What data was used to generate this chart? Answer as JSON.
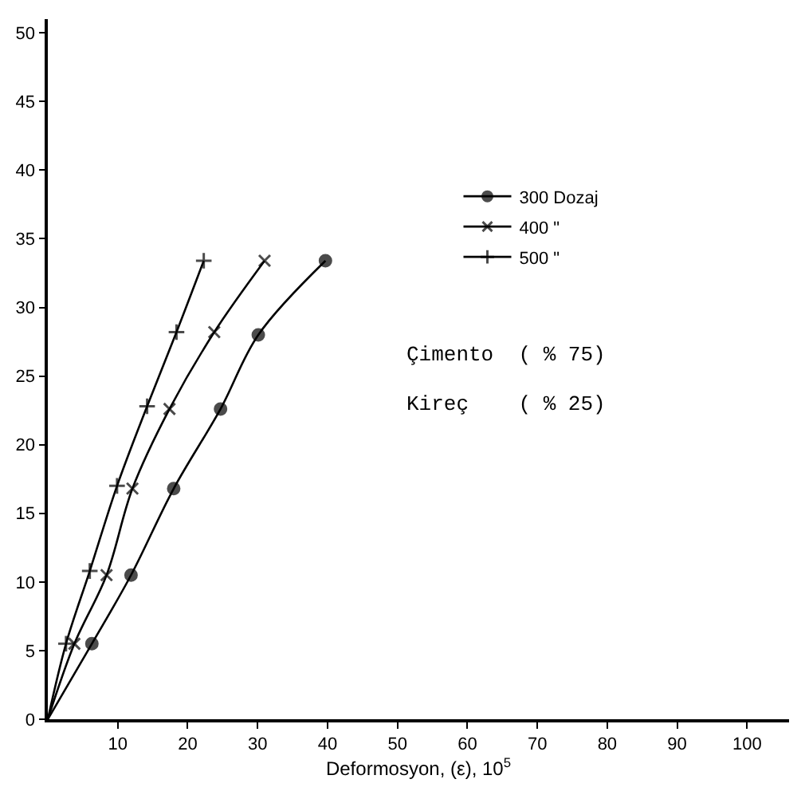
{
  "chart_data": {
    "type": "line",
    "xlabel": "Deformosyon, (ε), 10$^{5}$",
    "xlim": [
      0,
      106
    ],
    "xticks": [
      10,
      20,
      30,
      40,
      50,
      60,
      70,
      80,
      90,
      100
    ],
    "ylim": [
      0,
      51
    ],
    "yticks": [
      0,
      5,
      10,
      15,
      20,
      25,
      30,
      35,
      40,
      45,
      50
    ],
    "legend": "top right",
    "line_style": "solid",
    "series": [
      {
        "name": "300 Dozaj",
        "color": "#000000",
        "marker": "circle",
        "x": [
          0,
          6.3,
          11.9,
          18,
          24.7,
          30.1,
          39.7
        ],
        "values": [
          0,
          5.5,
          10.5,
          16.8,
          22.6,
          28,
          33.4
        ]
      },
      {
        "name": "400 \"",
        "color": "#000000",
        "marker": "x",
        "x": [
          0,
          3.8,
          8.4,
          12.1,
          17.4,
          23.8,
          31
        ],
        "values": [
          0,
          5.5,
          10.5,
          16.8,
          22.6,
          28.2,
          33.4
        ]
      },
      {
        "name": "500 \"",
        "color": "#000000",
        "marker": "cross",
        "x": [
          0,
          2.6,
          6,
          9.9,
          14.2,
          18.4,
          22.3
        ],
        "values": [
          0,
          5.5,
          10.8,
          17,
          22.8,
          28.2,
          33.4
        ]
      }
    ],
    "annotations": [
      "Çimento  ( % 75)",
      "Kireç    ( % 25)"
    ]
  }
}
